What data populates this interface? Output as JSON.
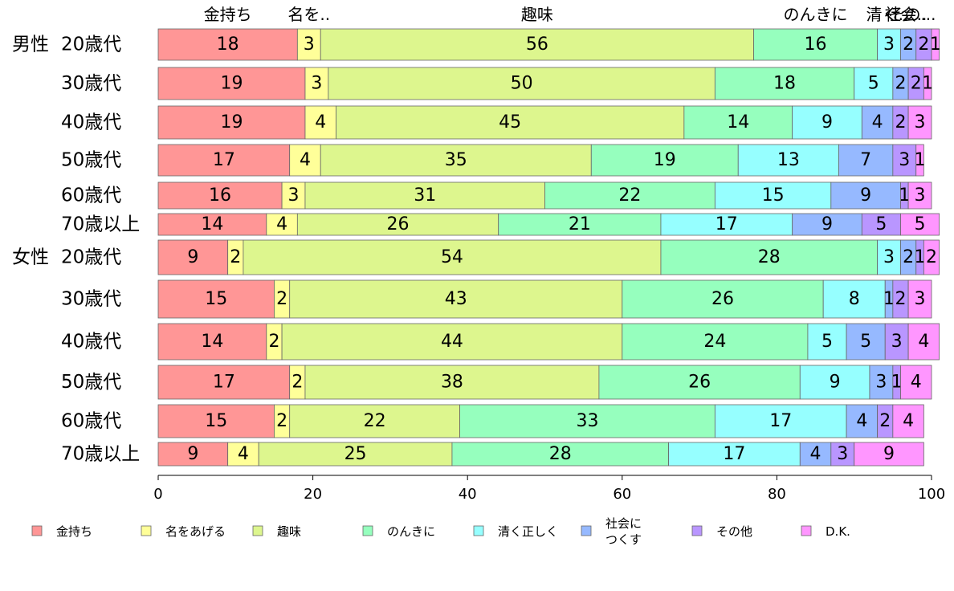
{
  "chart_data": {
    "type": "bar",
    "orientation": "horizontal",
    "stacked": true,
    "xlim": [
      0,
      100
    ],
    "x_ticks": [
      0,
      20,
      40,
      60,
      80,
      100
    ],
    "legend_position": "bottom",
    "top_category_labels": [
      "金持ち",
      "名を..",
      "趣味",
      "のんきに",
      "清く..",
      "社会..",
      "その..."
    ],
    "series": [
      {
        "name": "金持ち",
        "color": "#ff9696",
        "values": [
          18,
          19,
          19,
          17,
          16,
          14,
          9,
          15,
          14,
          17,
          15,
          9
        ]
      },
      {
        "name": "名をあげる",
        "color": "#ffff99",
        "values": [
          3,
          3,
          4,
          4,
          3,
          4,
          2,
          2,
          2,
          2,
          2,
          4
        ]
      },
      {
        "name": "趣味",
        "color": "#ddf68e",
        "values": [
          56,
          50,
          45,
          35,
          31,
          26,
          54,
          43,
          44,
          38,
          22,
          25
        ]
      },
      {
        "name": "のんきに",
        "color": "#96ffbe",
        "values": [
          16,
          18,
          14,
          19,
          22,
          21,
          28,
          26,
          24,
          26,
          33,
          28
        ]
      },
      {
        "name": "清く正しく",
        "color": "#96ffff",
        "values": [
          3,
          5,
          9,
          13,
          15,
          17,
          3,
          8,
          5,
          9,
          17,
          17
        ]
      },
      {
        "name": "社会に\nつくす",
        "color": "#96b9ff",
        "values": [
          2,
          2,
          4,
          7,
          9,
          9,
          2,
          1,
          5,
          3,
          4,
          4
        ]
      },
      {
        "name": "その他",
        "color": "#b996ff",
        "values": [
          2,
          2,
          2,
          3,
          1,
          5,
          1,
          2,
          3,
          1,
          2,
          3
        ]
      },
      {
        "name": "D.K.",
        "color": "#ff96ff",
        "values": [
          1,
          1,
          3,
          1,
          3,
          5,
          2,
          3,
          4,
          4,
          4,
          9
        ]
      }
    ],
    "rows": [
      {
        "group": "男性",
        "label": "20歳代"
      },
      {
        "group": "",
        "label": "30歳代"
      },
      {
        "group": "",
        "label": "40歳代"
      },
      {
        "group": "",
        "label": "50歳代"
      },
      {
        "group": "",
        "label": "60歳代"
      },
      {
        "group": "",
        "label": "70歳以上"
      },
      {
        "group": "女性",
        "label": "20歳代"
      },
      {
        "group": "",
        "label": "30歳代"
      },
      {
        "group": "",
        "label": "40歳代"
      },
      {
        "group": "",
        "label": "50歳代"
      },
      {
        "group": "",
        "label": "60歳代"
      },
      {
        "group": "",
        "label": "70歳以上"
      }
    ]
  }
}
